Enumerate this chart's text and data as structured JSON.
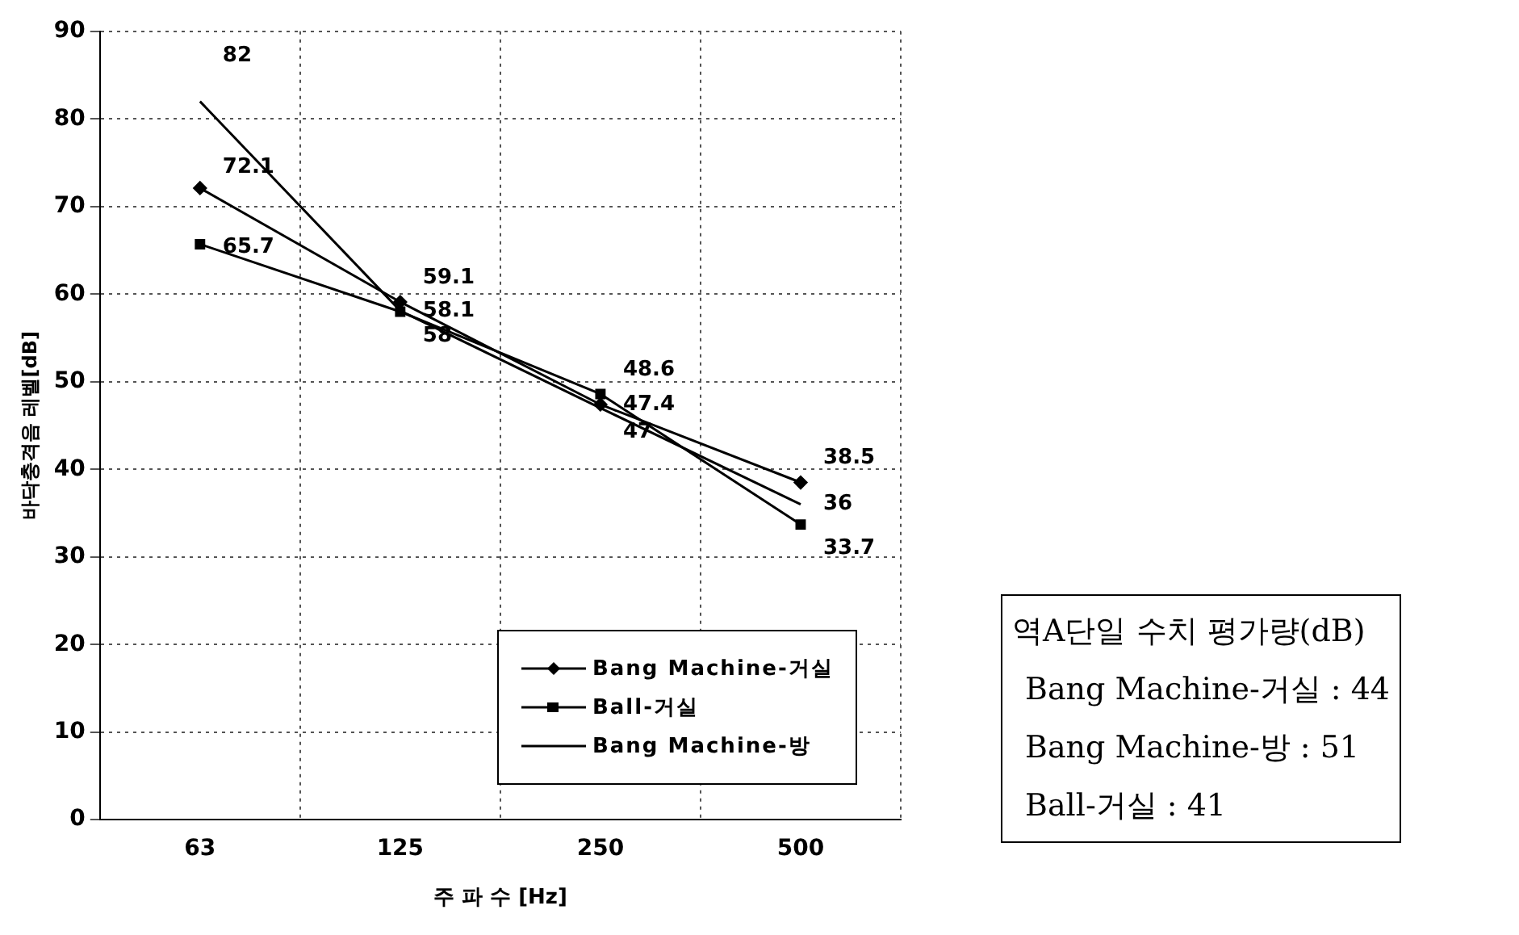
{
  "chart_data": {
    "type": "line",
    "xlabel": "주 파 수 [Hz]",
    "ylabel": "바닥충격음 레벨[dB]",
    "categories": [
      "63",
      "125",
      "250",
      "500"
    ],
    "series": [
      {
        "name": "Bang Machine-거실",
        "color": "#000000",
        "marker": "diamond",
        "values": [
          72.1,
          59.1,
          47.4,
          38.5
        ]
      },
      {
        "name": "Ball-거실",
        "color": "#000000",
        "marker": "square",
        "values": [
          65.7,
          58,
          48.6,
          33.7
        ]
      },
      {
        "name": "Bang Machine-방",
        "color": "#000000",
        "marker": "none",
        "values": [
          82,
          58.1,
          47,
          36
        ]
      }
    ],
    "ylim": [
      0,
      90
    ],
    "yticks": [
      0,
      10,
      20,
      30,
      40,
      50,
      60,
      70,
      80,
      90
    ],
    "grid": true,
    "legend": "bottom right",
    "data_labels": true,
    "annotations": [
      "역A단일 수치 평가량(dB)",
      "Bang Machine-거실 : 44",
      "Bang Machine-방 : 51",
      "Ball-거실 : 41"
    ]
  }
}
